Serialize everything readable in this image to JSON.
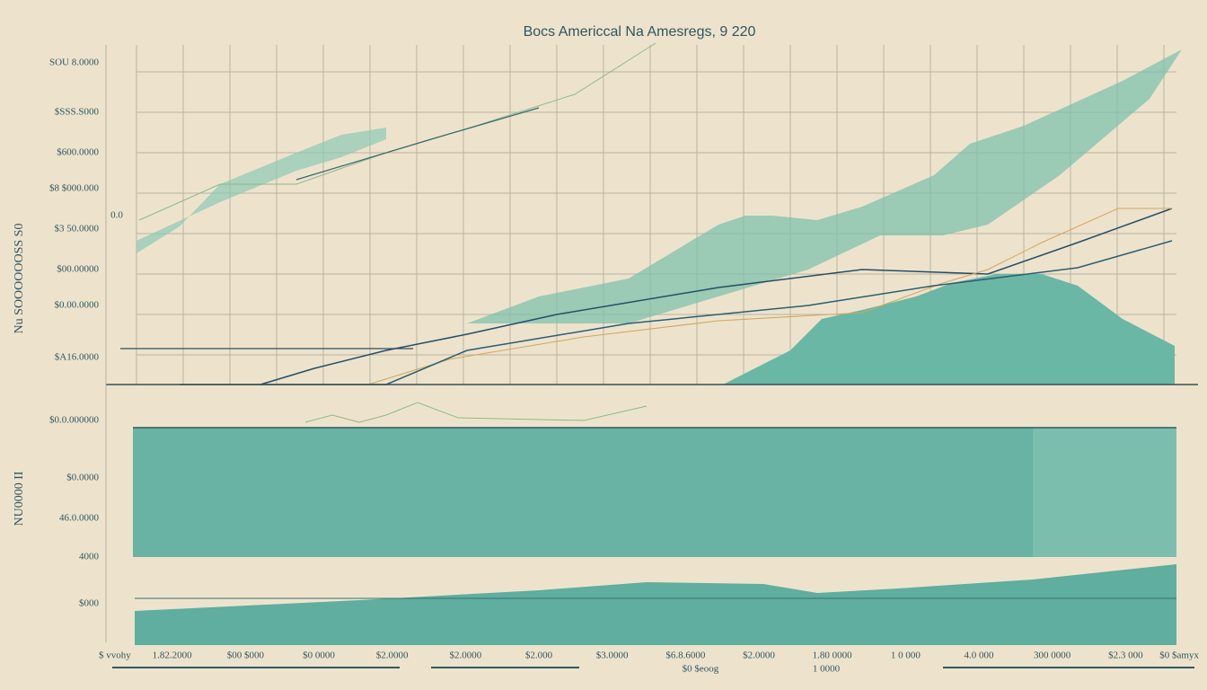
{
  "chart_data": {
    "type": "line",
    "title": "Bocs Americcal Na Amesregs, 9 220",
    "top_ylabel": "Nu SOOOOOOSS S0",
    "top_side_note": "0.0",
    "top_y_labels": [
      "SOU 8.0000",
      "$SSS.S000",
      "$600.0000",
      "$8 $000.000",
      "$3 50.0000",
      "$00.00000",
      "$0.00.0000",
      "$A16.0000"
    ],
    "bottom_ylabel": "NU0000 II",
    "bottom_y_labels": [
      "$0.0.000000",
      "$0.0000",
      "46.0.0000",
      "4000",
      "$000"
    ],
    "x_labels": [
      "$ vvohy",
      "1.82.2000",
      "$00 $000",
      "$0 0000",
      "$2.0000",
      "$2.0000",
      "$2.000",
      "$3.0000",
      "$6.8.6000",
      "$2.0000",
      "1.80 0000",
      "1 0 000",
      "4.0 000",
      "300 0000",
      "$2.3 000",
      "$0 $amyx"
    ],
    "x_sublabels": [
      "$0 $eoog",
      "1 0000"
    ]
  }
}
